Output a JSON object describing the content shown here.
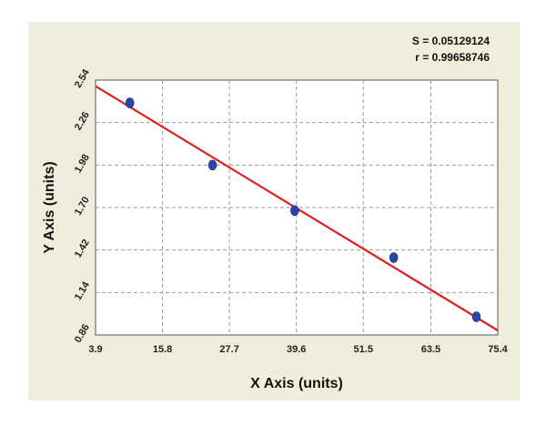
{
  "chart_data": {
    "type": "scatter",
    "title": "",
    "xlabel": "X Axis (units)",
    "ylabel": "Y Axis (units)",
    "xlim": [
      3.9,
      75.4
    ],
    "ylim": [
      0.86,
      2.54
    ],
    "xticks": [
      "3.9",
      "15.8",
      "27.7",
      "39.6",
      "51.5",
      "63.5",
      "75.4"
    ],
    "yticks": [
      "0.86",
      "1.14",
      "1.42",
      "1.70",
      "1.98",
      "2.26",
      "2.54"
    ],
    "grid": true,
    "annotations": {
      "s_stat": "S = 0.05129124",
      "r_stat": "r = 0.99658746"
    },
    "series": [
      {
        "type": "scatter",
        "color": "#2a46a8",
        "points": [
          {
            "x": 10.0,
            "y": 2.39
          },
          {
            "x": 24.7,
            "y": 1.98
          },
          {
            "x": 39.3,
            "y": 1.68
          },
          {
            "x": 56.9,
            "y": 1.37
          },
          {
            "x": 71.6,
            "y": 0.98
          }
        ]
      },
      {
        "type": "line",
        "color": "#dd1f1f",
        "points": [
          {
            "x": 3.9,
            "y": 2.5
          },
          {
            "x": 75.4,
            "y": 0.89
          }
        ]
      }
    ]
  }
}
